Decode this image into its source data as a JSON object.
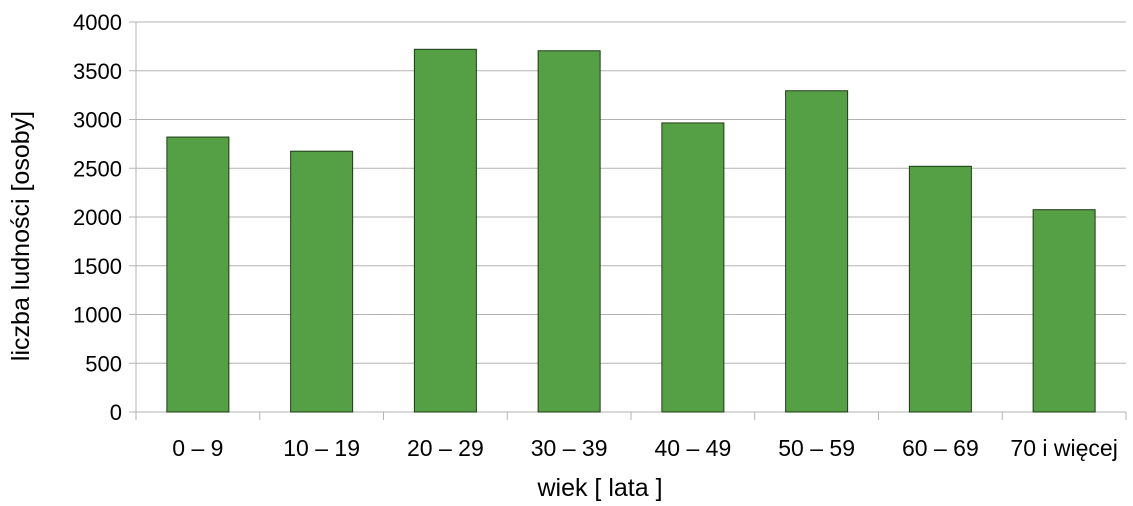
{
  "chart_data": {
    "type": "bar",
    "categories": [
      "0 – 9",
      "10 – 19",
      "20 – 29",
      "30 – 39",
      "40 – 49",
      "50 – 59",
      "60 – 69",
      "70 i więcej"
    ],
    "values": [
      2820,
      2675,
      3720,
      3705,
      2965,
      3295,
      2520,
      2075
    ],
    "xlabel": "wiek [ lata ]",
    "ylabel": "liczba ludności [osoby]",
    "ylim": [
      0,
      4000
    ],
    "yticks": [
      "0",
      "500",
      "1000",
      "1500",
      "2000",
      "2500",
      "3000",
      "3500",
      "4000"
    ],
    "grid": true,
    "bar_color": "#55A045",
    "bar_edge_color": "#1E3A16",
    "grid_color": "#B3B3B3"
  }
}
